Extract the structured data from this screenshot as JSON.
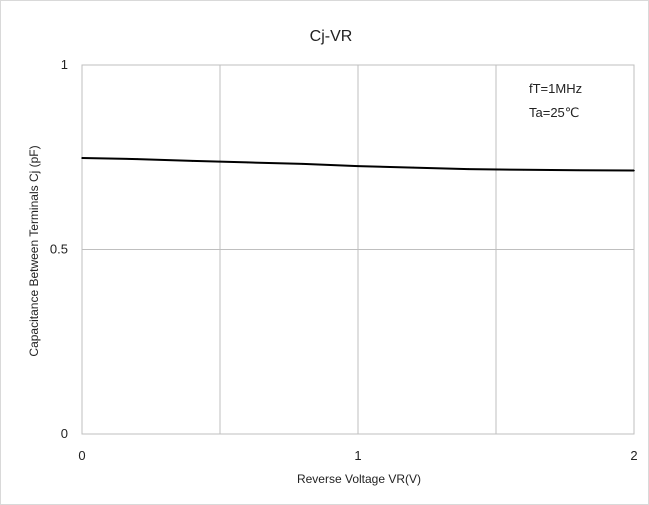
{
  "chart_data": {
    "type": "line",
    "title": "Cj-VR",
    "xlabel": "Reverse Voltage   VR(V)",
    "ylabel": "Capacitance Between Terminals Cj (pF)",
    "xlim": [
      0,
      2
    ],
    "ylim": [
      0,
      1
    ],
    "x_ticks": [
      "0",
      "1",
      "2"
    ],
    "y_ticks": [
      "0",
      "0.5",
      "1"
    ],
    "grid": true,
    "annotations": [
      "fT=1MHz",
      "Ta=25℃"
    ],
    "series": [
      {
        "x": [
          0,
          0.2,
          0.4,
          0.6,
          0.8,
          1.0,
          1.2,
          1.4,
          1.6,
          1.8,
          2.0
        ],
        "y": [
          0.748,
          0.745,
          0.74,
          0.736,
          0.732,
          0.726,
          0.722,
          0.718,
          0.716,
          0.715,
          0.714
        ]
      }
    ],
    "colors": {
      "line": "#000000",
      "grid": "#bfbfbf",
      "frame": "#d9d9d9"
    }
  }
}
